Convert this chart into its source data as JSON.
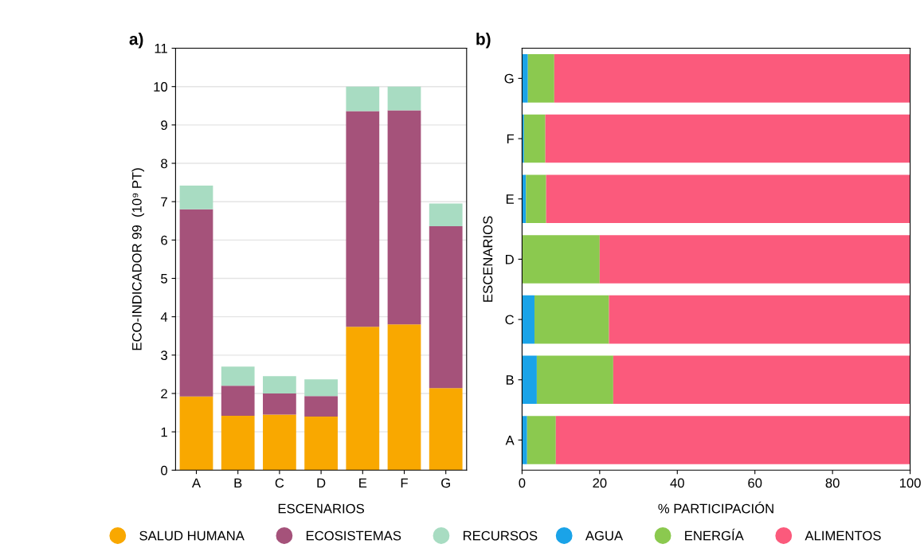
{
  "chart_data": [
    {
      "type": "bar",
      "title": "a)",
      "xlabel": "ESCENARIOS",
      "ylabel": "ECO-INDICADOR 99  (10⁹ PT)",
      "stacked": true,
      "categories": [
        "A",
        "B",
        "C",
        "D",
        "E",
        "F",
        "G"
      ],
      "series": [
        {
          "name": "SALUD HUMANA",
          "color": "#f9a800",
          "values": [
            1.92,
            1.42,
            1.45,
            1.4,
            3.74,
            3.8,
            2.14
          ]
        },
        {
          "name": "ECOSISTEMAS",
          "color": "#a5527a",
          "values": [
            4.88,
            0.78,
            0.55,
            0.53,
            5.62,
            5.58,
            4.22
          ]
        },
        {
          "name": "RECURSOS",
          "color": "#a8dcc2",
          "values": [
            0.62,
            0.5,
            0.45,
            0.44,
            0.64,
            0.62,
            0.59
          ]
        }
      ],
      "ylim": [
        0,
        11
      ],
      "yticks": [
        0,
        1,
        2,
        3,
        4,
        5,
        6,
        7,
        8,
        9,
        10,
        11
      ],
      "grid": "y",
      "legend": "bottom",
      "marker": "circle"
    },
    {
      "type": "bar",
      "title": "b)",
      "xlabel": "% PARTICIPACIÓN",
      "ylabel": "ESCENARIOS",
      "stacked": true,
      "orientation": "horizontal",
      "categories": [
        "G",
        "F",
        "E",
        "D",
        "C",
        "B",
        "A"
      ],
      "series": [
        {
          "name": "AGUA",
          "color": "#1aa3e8",
          "values": [
            1.5,
            0.5,
            1,
            0,
            3.2,
            3.8,
            1.3
          ]
        },
        {
          "name": "ENERGÍA",
          "color": "#8bc94f",
          "values": [
            6.8,
            5.5,
            5.2,
            20,
            19.2,
            19.7,
            7.4
          ]
        },
        {
          "name": "ALIMENTOS",
          "color": "#fb5a7c",
          "values": [
            91.7,
            94,
            93.8,
            80,
            77.6,
            76.5,
            91.3
          ]
        }
      ],
      "xlim": [
        0,
        100
      ],
      "xticks": [
        0,
        20,
        40,
        60,
        80,
        100
      ],
      "legend": "bottom",
      "marker": "circle"
    }
  ]
}
